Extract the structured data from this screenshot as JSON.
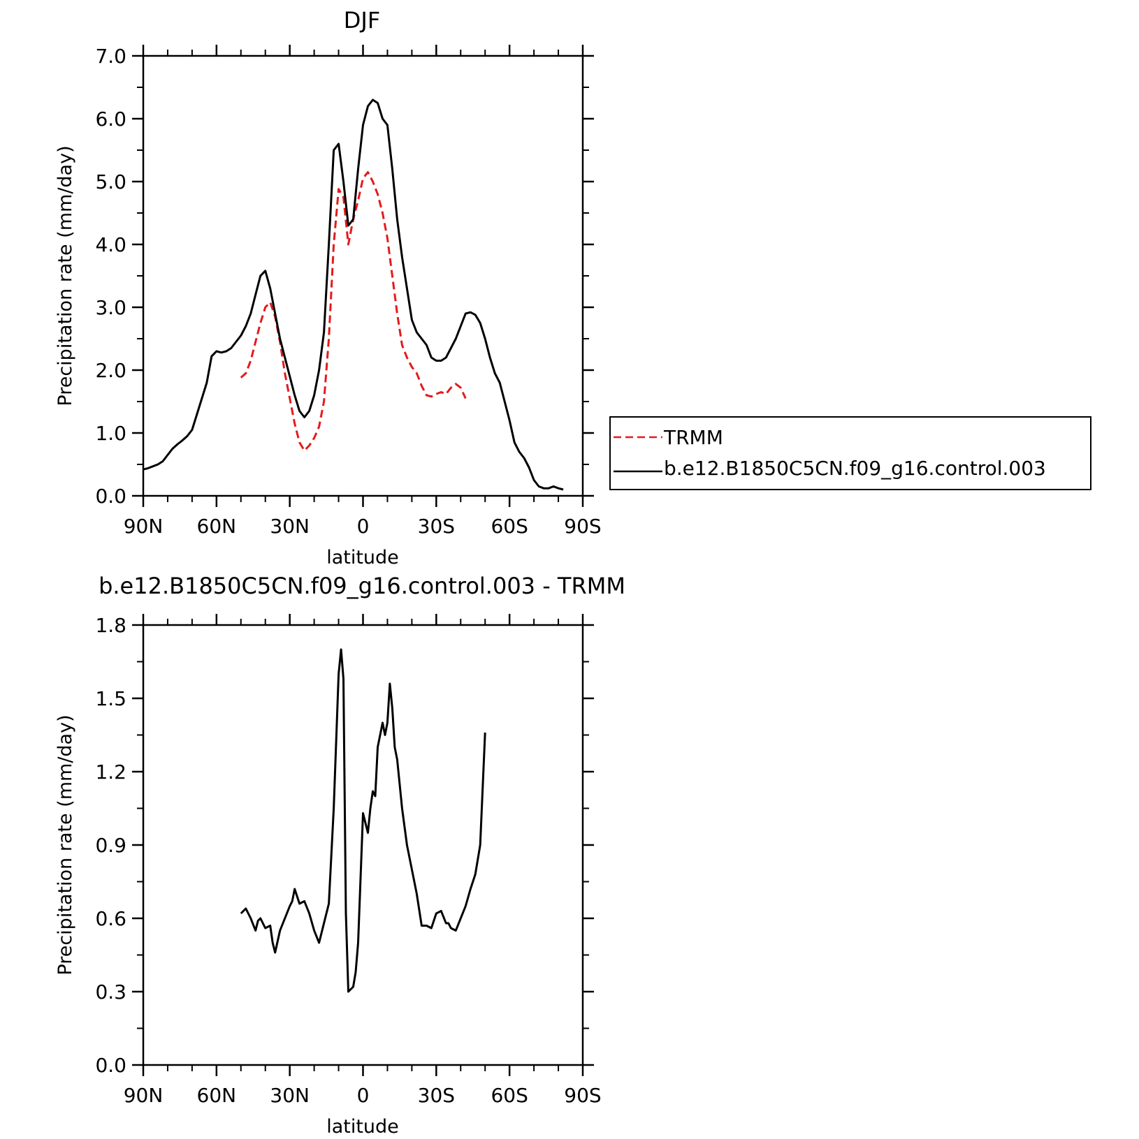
{
  "chart_data": [
    {
      "type": "line",
      "title": "DJF",
      "xlabel": "latitude",
      "ylabel": "Precipitation rate (mm/day)",
      "xlim": [
        90,
        -90
      ],
      "ylim": [
        0,
        7
      ],
      "x_ticks": [
        90,
        60,
        30,
        0,
        -30,
        -60,
        -90
      ],
      "x_tick_labels": [
        "90N",
        "60N",
        "30N",
        "0",
        "30S",
        "60S",
        "90S"
      ],
      "y_ticks": [
        0,
        1,
        2,
        3,
        4,
        5,
        6,
        7
      ],
      "y_tick_labels": [
        "0.0",
        "1.0",
        "2.0",
        "3.0",
        "4.0",
        "5.0",
        "6.0",
        "7.0"
      ],
      "legend_position": "right",
      "series": [
        {
          "name": "TRMM",
          "color": "#e41a1c",
          "style": "dashed",
          "x": [
            50,
            48,
            46,
            44,
            42,
            40,
            38,
            36,
            34,
            32,
            30,
            28,
            26,
            24,
            22,
            20,
            18,
            16,
            14,
            12,
            10,
            8,
            6,
            4,
            2,
            0,
            -2,
            -4,
            -6,
            -8,
            -10,
            -12,
            -14,
            -16,
            -18,
            -20,
            -22,
            -24,
            -26,
            -28,
            -30,
            -32,
            -34,
            -36,
            -38,
            -40,
            -42,
            -44,
            -46,
            -48,
            -50
          ],
          "y": [
            1.88,
            1.95,
            2.15,
            2.45,
            2.75,
            3.0,
            3.08,
            2.85,
            2.45,
            1.95,
            1.55,
            1.15,
            0.85,
            0.72,
            0.8,
            0.92,
            1.1,
            1.5,
            2.5,
            4.0,
            4.88,
            4.75,
            4.0,
            4.4,
            4.7,
            5.05,
            5.15,
            5.0,
            4.8,
            4.5,
            4.1,
            3.5,
            2.9,
            2.4,
            2.2,
            2.05,
            1.95,
            1.75,
            1.6,
            1.58,
            1.62,
            1.65,
            1.62,
            1.72,
            1.78,
            1.72,
            1.55,
            null,
            null,
            null,
            null
          ]
        },
        {
          "name": "b.e12.B1850C5CN.f09_g16.control.003",
          "color": "#000000",
          "style": "solid",
          "x": [
            90,
            88,
            86,
            84,
            82,
            80,
            78,
            76,
            74,
            72,
            70,
            68,
            66,
            64,
            62,
            60,
            58,
            56,
            54,
            52,
            50,
            48,
            46,
            44,
            42,
            40,
            38,
            36,
            34,
            32,
            30,
            28,
            26,
            24,
            22,
            20,
            18,
            16,
            14,
            12,
            10,
            8,
            6,
            4,
            2,
            0,
            -2,
            -4,
            -6,
            -8,
            -10,
            -12,
            -14,
            -16,
            -18,
            -20,
            -22,
            -24,
            -26,
            -28,
            -30,
            -32,
            -34,
            -36,
            -38,
            -40,
            -42,
            -44,
            -46,
            -48,
            -50,
            -52,
            -54,
            -56,
            -58,
            -60,
            -62,
            -64,
            -66,
            -68,
            -70,
            -72,
            -74,
            -76,
            -78,
            -80,
            -82,
            -84,
            -86,
            -88,
            -90
          ],
          "y": [
            0.42,
            0.44,
            0.47,
            0.5,
            0.55,
            0.65,
            0.75,
            0.82,
            0.88,
            0.95,
            1.05,
            1.3,
            1.55,
            1.8,
            2.22,
            2.3,
            2.28,
            2.3,
            2.35,
            2.45,
            2.55,
            2.7,
            2.9,
            3.2,
            3.5,
            3.58,
            3.3,
            2.9,
            2.5,
            2.2,
            1.9,
            1.6,
            1.35,
            1.25,
            1.35,
            1.6,
            2.0,
            2.6,
            4.0,
            5.5,
            5.6,
            5.0,
            4.3,
            4.4,
            5.2,
            5.9,
            6.2,
            6.3,
            6.25,
            6.0,
            5.9,
            5.2,
            4.4,
            3.8,
            3.3,
            2.8,
            2.6,
            2.5,
            2.4,
            2.2,
            2.15,
            2.15,
            2.2,
            2.35,
            2.5,
            2.7,
            2.9,
            2.92,
            2.88,
            2.75,
            2.5,
            2.2,
            1.95,
            1.8,
            1.5,
            1.2,
            0.85,
            0.7,
            0.6,
            0.45,
            0.25,
            0.15,
            0.12,
            0.12,
            0.15,
            0.12,
            0.1,
            null,
            null,
            null,
            null
          ]
        }
      ]
    },
    {
      "type": "line",
      "title": "b.e12.B1850C5CN.f09_g16.control.003 - TRMM",
      "xlabel": "latitude",
      "ylabel": "Precipitation rate (mm/day)",
      "xlim": [
        90,
        -90
      ],
      "ylim": [
        0,
        1.8
      ],
      "x_ticks": [
        90,
        60,
        30,
        0,
        -30,
        -60,
        -90
      ],
      "x_tick_labels": [
        "90N",
        "60N",
        "30N",
        "0",
        "30S",
        "60S",
        "90S"
      ],
      "y_ticks": [
        0,
        0.3,
        0.6,
        0.9,
        1.2,
        1.5,
        1.8
      ],
      "y_tick_labels": [
        "0.0",
        "0.3",
        "0.6",
        "0.9",
        "1.2",
        "1.5",
        "1.8"
      ],
      "series": [
        {
          "color": "#000000",
          "style": "solid",
          "x": [
            50,
            48,
            46,
            44,
            43,
            42,
            40,
            38,
            37,
            36,
            34,
            32,
            30,
            29,
            28,
            26,
            24,
            22,
            20,
            18,
            16,
            14,
            12,
            10,
            9,
            8,
            7,
            6,
            4,
            3,
            2,
            0,
            -2,
            -3,
            -4,
            -5,
            -6,
            -7,
            -8,
            -9,
            -10,
            -11,
            -12,
            -13,
            -14,
            -15,
            -16,
            -18,
            -20,
            -22,
            -24,
            -26,
            -28,
            -30,
            -32,
            -34,
            -35,
            -36,
            -38,
            -40,
            -42,
            -44,
            -46,
            -48,
            -50
          ],
          "y": [
            0.62,
            0.64,
            0.6,
            0.55,
            0.59,
            0.6,
            0.56,
            0.57,
            0.5,
            0.46,
            0.55,
            0.6,
            0.65,
            0.67,
            0.72,
            0.66,
            0.67,
            0.62,
            0.55,
            0.5,
            0.58,
            0.66,
            1.05,
            1.6,
            1.7,
            1.58,
            0.62,
            0.3,
            0.32,
            0.38,
            0.5,
            1.03,
            0.95,
            1.05,
            1.12,
            1.1,
            1.3,
            1.35,
            1.4,
            1.35,
            1.4,
            1.56,
            1.46,
            1.3,
            1.25,
            1.15,
            1.05,
            0.9,
            0.8,
            0.7,
            0.57,
            0.57,
            0.56,
            0.62,
            0.63,
            0.58,
            0.58,
            0.56,
            0.55,
            0.6,
            0.65,
            0.72,
            0.78,
            0.9,
            1.36
          ]
        }
      ]
    }
  ]
}
